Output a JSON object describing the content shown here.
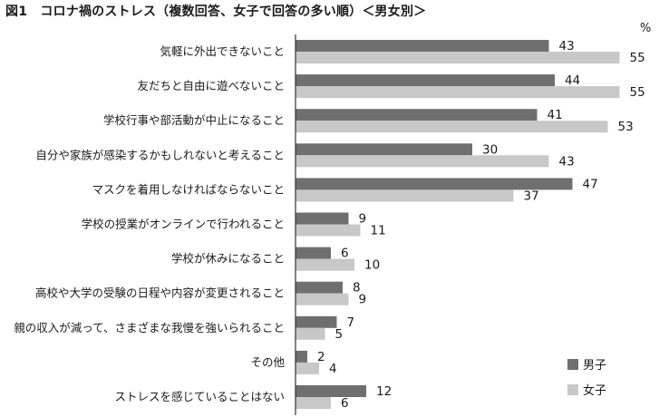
{
  "title": "図1　コロナ禍のストレス（複数回答、女子で回答の多い順）＜男女別＞",
  "unit": "%",
  "colors": {
    "male": "#6f6f6f",
    "female": "#c8c8c8",
    "axis": "#333333"
  },
  "chart_data": {
    "type": "bar",
    "orientation": "horizontal",
    "title": "図1　コロナ禍のストレス（複数回答、女子で回答の多い順）＜男女別＞",
    "unit": "%",
    "categories": [
      "気軽に外出できないこと",
      "友だちと自由に遊べないこと",
      "学校行事や部活動が中止になること",
      "自分や家族が感染するかもしれないと考えること",
      "マスクを着用しなければならないこと",
      "学校の授業がオンラインで行われること",
      "学校が休みになること",
      "高校や大学の受験の日程や内容が変更されること",
      "親の収入が減って、さまざまな我慢を強いられること",
      "その他",
      "ストレスを感じていることはない"
    ],
    "series": [
      {
        "name": "男子",
        "values": [
          43,
          44,
          41,
          30,
          47,
          9,
          6,
          8,
          7,
          2,
          12
        ]
      },
      {
        "name": "女子",
        "values": [
          55,
          55,
          53,
          43,
          37,
          11,
          10,
          9,
          5,
          4,
          6
        ]
      }
    ],
    "xlim": [
      0,
      60
    ],
    "legend": "bottom-right",
    "grid": false
  }
}
